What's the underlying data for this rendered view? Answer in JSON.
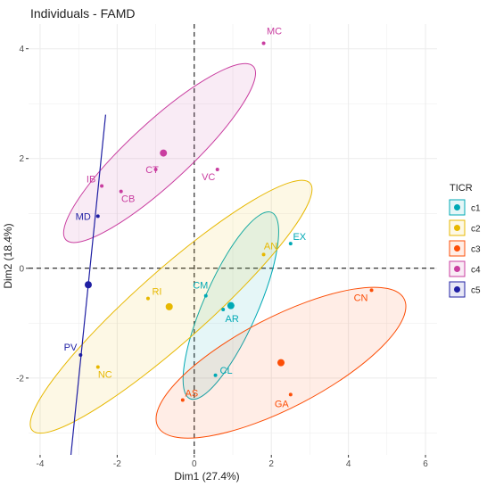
{
  "chart_data": {
    "type": "scatter",
    "title": "Individuals - FAMD",
    "xlabel": "Dim1 (27.4%)",
    "ylabel": "Dim2 (18.4%)",
    "xlim": [
      -4.3,
      6.3
    ],
    "ylim": [
      -3.4,
      4.45
    ],
    "xticks": [
      -4,
      -2,
      0,
      2,
      4,
      6
    ],
    "yticks": [
      -2,
      0,
      2,
      4
    ],
    "grid": true,
    "reference_lines": {
      "x": 0,
      "y": 0,
      "style": "dashed"
    },
    "legend": {
      "title": "TICR",
      "position": "right"
    },
    "series": [
      {
        "name": "c1",
        "color": "#00A9B5",
        "points": [
          {
            "label": "EX",
            "x": 2.5,
            "y": 0.45
          },
          {
            "label": "CM",
            "x": 0.3,
            "y": -0.5
          },
          {
            "label": "AR",
            "x": 0.75,
            "y": -0.75
          },
          {
            "label": "CL",
            "x": 0.55,
            "y": -1.95
          }
        ],
        "centroid": {
          "x": 0.95,
          "y": -0.68
        },
        "ellipse": {
          "cx": 0.95,
          "cy": -0.68,
          "rx": 2.0,
          "ry": 0.62,
          "angle_deg": 58
        }
      },
      {
        "name": "c2",
        "color": "#E7B800",
        "points": [
          {
            "label": "AN",
            "x": 1.8,
            "y": 0.25
          },
          {
            "label": "RI",
            "x": -1.2,
            "y": -0.55
          },
          {
            "label": "NC",
            "x": -2.5,
            "y": -1.8
          }
        ],
        "centroid": {
          "x": -0.65,
          "y": -0.7
        },
        "ellipse": {
          "cx": -0.6,
          "cy": -0.7,
          "rx": 4.25,
          "ry": 0.7,
          "angle_deg": 32
        }
      },
      {
        "name": "c3",
        "color": "#FC4E07",
        "points": [
          {
            "label": "CN",
            "x": 4.6,
            "y": -0.4
          },
          {
            "label": "GA",
            "x": 2.5,
            "y": -2.3
          },
          {
            "label": "AS",
            "x": -0.3,
            "y": -2.4
          }
        ],
        "centroid": {
          "x": 2.25,
          "y": -1.72
        },
        "ellipse": {
          "cx": 2.25,
          "cy": -1.72,
          "rx": 3.4,
          "ry": 0.85,
          "angle_deg": 20
        }
      },
      {
        "name": "c4",
        "color": "#C93EA0",
        "points": [
          {
            "label": "MC",
            "x": 1.8,
            "y": 4.1
          },
          {
            "label": "CT",
            "x": -1.0,
            "y": 1.8
          },
          {
            "label": "VC",
            "x": 0.6,
            "y": 1.8
          },
          {
            "label": "IB",
            "x": -2.4,
            "y": 1.5
          },
          {
            "label": "CB",
            "x": -1.9,
            "y": 1.4
          }
        ],
        "centroid": {
          "x": -0.8,
          "y": 2.1
        },
        "ellipse": {
          "cx": -0.9,
          "cy": 2.1,
          "rx": 2.9,
          "ry": 0.6,
          "angle_deg": 33
        }
      },
      {
        "name": "c5",
        "color": "#1F1FA3",
        "points": [
          {
            "label": "MD",
            "x": -2.5,
            "y": 0.95
          },
          {
            "label": "PV",
            "x": -2.95,
            "y": -1.58
          }
        ],
        "centroid": {
          "x": -2.75,
          "y": -0.3
        },
        "line": {
          "x1": -2.3,
          "y1": 2.8,
          "x2": -3.2,
          "y2": -3.4
        }
      }
    ]
  }
}
